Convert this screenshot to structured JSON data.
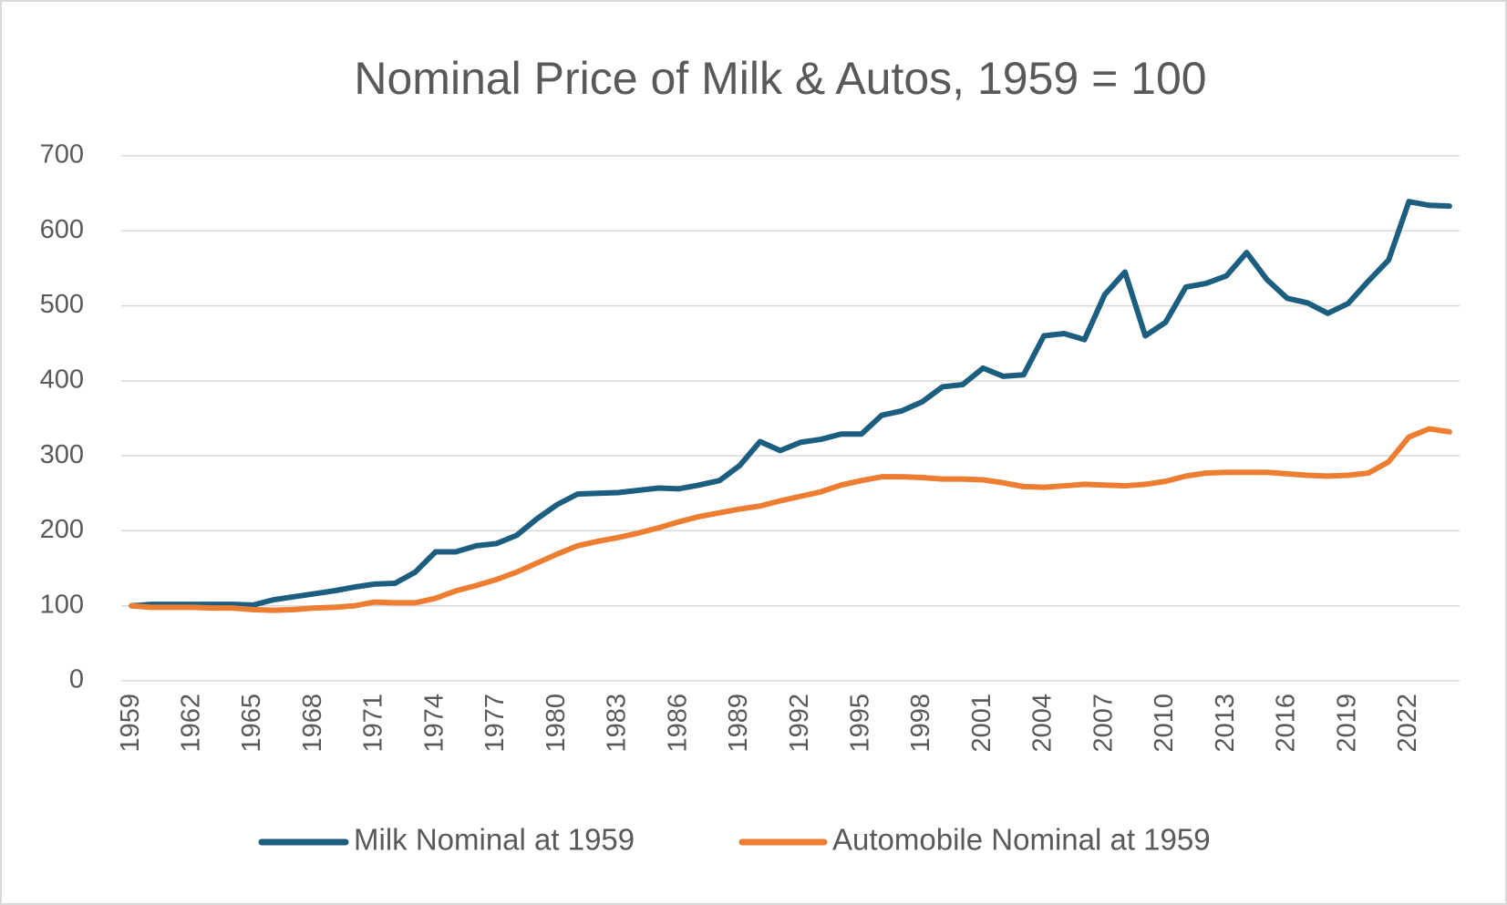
{
  "chart_data": {
    "type": "line",
    "title": "Nominal Price of Milk & Autos, 1959 = 100",
    "categories": [
      "1959",
      null,
      null,
      "1962",
      null,
      null,
      "1965",
      null,
      null,
      "1968",
      null,
      null,
      "1971",
      null,
      null,
      "1974",
      null,
      null,
      "1977",
      null,
      null,
      "1980",
      null,
      null,
      "1983",
      null,
      null,
      "1986",
      null,
      null,
      "1989",
      null,
      null,
      "1992",
      null,
      null,
      "1995",
      null,
      null,
      "1998",
      null,
      null,
      "2001",
      null,
      null,
      "2004",
      null,
      null,
      "2007",
      null,
      null,
      "2010",
      null,
      null,
      "2013",
      null,
      null,
      "2016",
      null,
      null,
      "2019",
      null,
      null,
      "2022",
      null,
      null
    ],
    "series": [
      {
        "name": "Milk Nominal at 1959",
        "color": "#1b5e80",
        "values": [
          100,
          102,
          102,
          102,
          102,
          102,
          101,
          108,
          112,
          116,
          120,
          125,
          129,
          130,
          145,
          172,
          172,
          180,
          183,
          194,
          216,
          235,
          249,
          250,
          251,
          254,
          257,
          256,
          261,
          267,
          287,
          319,
          307,
          318,
          322,
          329,
          329,
          354,
          360,
          372,
          392,
          395,
          417,
          406,
          408,
          460,
          463,
          455,
          515,
          545,
          460,
          478,
          525,
          530,
          540,
          571,
          535,
          510,
          504,
          490,
          503,
          533,
          561,
          639,
          634,
          633
        ]
      },
      {
        "name": "Automobile Nominal at 1959",
        "color": "#ed7d31",
        "values": [
          100,
          98,
          98,
          98,
          97,
          97,
          95,
          94,
          95,
          97,
          98,
          100,
          105,
          104,
          104,
          110,
          120,
          127,
          135,
          145,
          157,
          169,
          180,
          186,
          191,
          197,
          204,
          212,
          219,
          224,
          229,
          233,
          240,
          246,
          252,
          261,
          267,
          272,
          272,
          271,
          269,
          269,
          268,
          264,
          259,
          258,
          260,
          262,
          261,
          260,
          262,
          266,
          273,
          277,
          278,
          278,
          278,
          276,
          274,
          273,
          274,
          277,
          292,
          325,
          336,
          332
        ]
      }
    ],
    "ylim": [
      0,
      700
    ],
    "yticks": [
      0,
      100,
      200,
      300,
      400,
      500,
      600,
      700
    ],
    "grid": true,
    "legend": "bottom"
  }
}
